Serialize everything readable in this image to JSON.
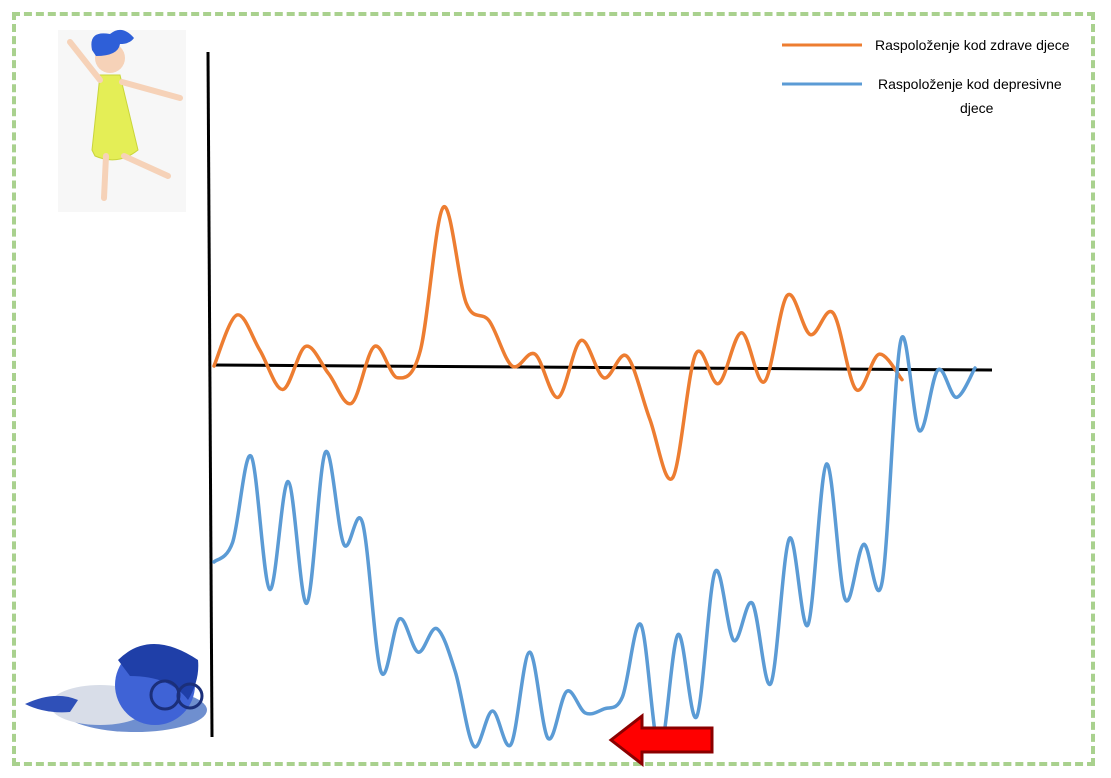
{
  "chart_data": {
    "type": "line",
    "title": "",
    "xlabel": "",
    "ylabel": "",
    "grid": false,
    "legend_position": "top-right",
    "series": [
      {
        "name": "Raspoloženje kod zdrave djece",
        "color": "#ed7d31",
        "values": [
          0,
          2.6,
          0.8,
          -1.2,
          1.0,
          -0.4,
          -1.9,
          1.0,
          -0.6,
          0.8,
          8.1,
          3.2,
          2.3,
          0,
          0.6,
          -1.6,
          1.3,
          -0.6,
          0.5,
          -2.7,
          -5.7,
          0.6,
          -0.9,
          1.7,
          -0.8,
          3.6,
          1.6,
          2.7,
          -1.2,
          0.6,
          -0.7
        ]
      },
      {
        "name": "Raspoloženje kod depresivne djece",
        "color": "#5b9bd5",
        "values": [
          -10.0,
          -9.0,
          -4.6,
          -11.4,
          -5.9,
          -12.1,
          -4.4,
          -9.1,
          -8.0,
          -15.6,
          -12.9,
          -14.6,
          -13.4,
          -15.6,
          -19.4,
          -17.6,
          -19.3,
          -14.6,
          -19.0,
          -16.6,
          -17.7,
          -17.5,
          -16.9,
          -13.2,
          -19.6,
          -13.7,
          -17.9,
          -10.5,
          -14.0,
          -12.1,
          -16.2,
          -8.8,
          -13.2,
          -5.0,
          -11.9,
          -9.1,
          -11.0,
          1.3,
          -3.3,
          -0.2,
          -1.6,
          -0.1
        ]
      }
    ]
  },
  "legend": {
    "healthy_label": "Raspoloženje kod zdrave djece",
    "depressed_label": "Raspoloženje kod depresivne djece"
  },
  "images": {
    "top_left": "joy-character-icon",
    "bottom_left": "sadness-character-icon"
  },
  "arrow_color": "#ff0000"
}
